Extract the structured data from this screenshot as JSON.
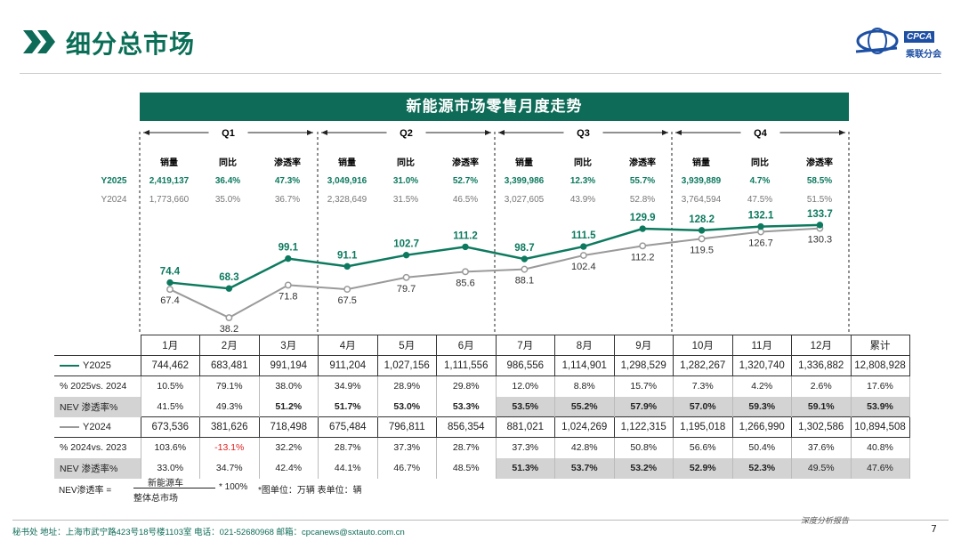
{
  "header": {
    "title": "细分总市场",
    "logo_text": "CPCA",
    "logo_sub": "乘联分会"
  },
  "banner": {
    "title": "新能源市场零售月度走势"
  },
  "quarters": [
    {
      "name": "Q1",
      "labels": [
        "销量",
        "同比",
        "渗透率"
      ],
      "y2025": [
        "2,419,137",
        "36.4%",
        "47.3%"
      ],
      "y2024": [
        "1,773,660",
        "35.0%",
        "36.7%"
      ]
    },
    {
      "name": "Q2",
      "labels": [
        "销量",
        "同比",
        "渗透率"
      ],
      "y2025": [
        "3,049,916",
        "31.0%",
        "52.7%"
      ],
      "y2024": [
        "2,328,649",
        "31.5%",
        "46.5%"
      ]
    },
    {
      "name": "Q3",
      "labels": [
        "销量",
        "同比",
        "渗透率"
      ],
      "y2025": [
        "3,399,986",
        "12.3%",
        "55.7%"
      ],
      "y2024": [
        "3,027,605",
        "43.9%",
        "52.8%"
      ]
    },
    {
      "name": "Q4",
      "labels": [
        "销量",
        "同比",
        "渗透率"
      ],
      "y2025": [
        "3,939,889",
        "4.7%",
        "58.5%"
      ],
      "y2024": [
        "3,764,594",
        "47.5%",
        "51.5%"
      ]
    }
  ],
  "row_labels": {
    "y2025": "Y2025",
    "y2024": "Y2024"
  },
  "colors": {
    "y2025": "#0d7a5f",
    "y2024": "#9a9a9a",
    "accent": "#0d6b57",
    "negative": "#e02020"
  },
  "chart_data": {
    "type": "line",
    "categories": [
      "1月",
      "2月",
      "3月",
      "4月",
      "5月",
      "6月",
      "7月",
      "8月",
      "9月",
      "10月",
      "11月",
      "12月"
    ],
    "series": [
      {
        "name": "Y2025",
        "values": [
          74.4,
          68.3,
          99.1,
          91.1,
          102.7,
          111.2,
          98.7,
          111.5,
          129.9,
          128.2,
          132.1,
          133.7
        ]
      },
      {
        "name": "Y2024",
        "values": [
          67.4,
          38.2,
          71.8,
          67.5,
          79.7,
          85.6,
          88.1,
          102.4,
          112.2,
          119.5,
          126.7,
          130.3
        ]
      }
    ],
    "ylim": [
      30,
      140
    ],
    "unit": "万辆"
  },
  "table": {
    "headers": [
      "1月",
      "2月",
      "3月",
      "4月",
      "5月",
      "6月",
      "7月",
      "8月",
      "9月",
      "10月",
      "11月",
      "12月",
      "累计"
    ],
    "rows": [
      {
        "label": "Y2025",
        "legend": "y2025",
        "cells": [
          "744,462",
          "683,481",
          "991,194",
          "911,204",
          "1,027,156",
          "1,111,556",
          "986,556",
          "1,114,901",
          "1,298,529",
          "1,282,267",
          "1,320,740",
          "1,336,882",
          "12,808,928"
        ]
      },
      {
        "label": "% 2025vs. 2024",
        "sub": true,
        "cells": [
          "10.5%",
          "79.1%",
          "38.0%",
          "34.9%",
          "28.9%",
          "29.8%",
          "12.0%",
          "8.8%",
          "15.7%",
          "7.3%",
          "4.2%",
          "2.6%",
          "17.6%"
        ]
      },
      {
        "label": "NEV 渗透率%",
        "sub": true,
        "cells": [
          "41.5%",
          "49.3%",
          "51.2%",
          "51.7%",
          "53.0%",
          "53.3%",
          "53.5%",
          "55.2%",
          "57.9%",
          "57.0%",
          "59.3%",
          "59.1%",
          "53.9%"
        ],
        "bold_from": 2
      },
      {
        "label": "Y2024",
        "legend": "y2024",
        "cells": [
          "673,536",
          "381,626",
          "718,498",
          "675,484",
          "796,811",
          "856,354",
          "881,021",
          "1,024,269",
          "1,122,315",
          "1,195,018",
          "1,266,990",
          "1,302,586",
          "10,894,508"
        ]
      },
      {
        "label": "% 2024vs. 2023",
        "sub": true,
        "cells": [
          "103.6%",
          "-13.1%",
          "32.2%",
          "28.7%",
          "37.3%",
          "28.7%",
          "37.3%",
          "42.8%",
          "50.8%",
          "56.6%",
          "50.4%",
          "37.6%",
          "40.8%"
        ],
        "neg_index": 1
      },
      {
        "label": "NEV 渗透率%",
        "sub": true,
        "cells": [
          "33.0%",
          "34.7%",
          "42.4%",
          "44.1%",
          "46.7%",
          "48.5%",
          "51.3%",
          "53.7%",
          "53.2%",
          "52.9%",
          "52.3%",
          "49.5%",
          "47.6%"
        ],
        "bold_idx": [
          6,
          7,
          8,
          9,
          10
        ]
      }
    ]
  },
  "formula": {
    "label": "NEV渗透率 =",
    "numerator": "新能源车",
    "denominator": "整体总市场",
    "times": "* 100%",
    "units": "*图单位：万辆    表单位：辆"
  },
  "footer": {
    "text": "秘书处   地址：上海市武宁路423号18号楼1103室  电话：021-52680968   邮箱：cpcanews@sxtauto.com.cn",
    "right": "深度分析报告",
    "page": "7"
  }
}
